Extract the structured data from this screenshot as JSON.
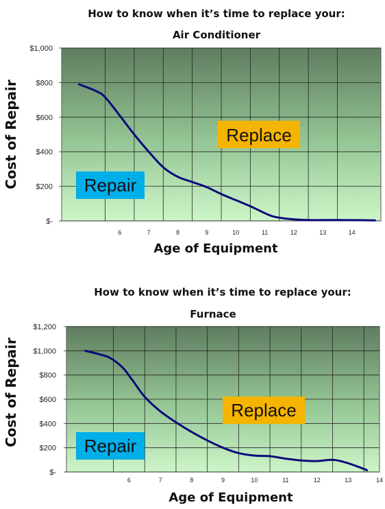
{
  "chart_data": [
    {
      "type": "line",
      "title": "How to know when it’s time to replace your:",
      "subtitle": "Air Conditioner",
      "xlabel": "Age of Equipment",
      "ylabel": "Cost of Repair",
      "ylim": [
        0,
        1000
      ],
      "xlim": [
        4.0,
        15.0
      ],
      "y_ticks": [
        {
          "value": 0,
          "label": "$-"
        },
        {
          "value": 200,
          "label": "$200"
        },
        {
          "value": 400,
          "label": "$400"
        },
        {
          "value": 600,
          "label": "$600"
        },
        {
          "value": 800,
          "label": "$800"
        },
        {
          "value": 1000,
          "label": "$1,000"
        }
      ],
      "x_ticks": [
        {
          "value": 6,
          "label": "6"
        },
        {
          "value": 7,
          "label": "7"
        },
        {
          "value": 8,
          "label": "8"
        },
        {
          "value": 9,
          "label": "9"
        },
        {
          "value": 10,
          "label": "10"
        },
        {
          "value": 11,
          "label": "11"
        },
        {
          "value": 12,
          "label": "12"
        },
        {
          "value": 13,
          "label": "13"
        },
        {
          "value": 14,
          "label": "14"
        }
      ],
      "grid": true,
      "series": [
        {
          "color": "#0b0b7a",
          "x": [
            4.6,
            5.2,
            5.5,
            6.0,
            6.5,
            7.0,
            7.5,
            8.0,
            8.5,
            9.0,
            9.5,
            10.0,
            10.5,
            11.0,
            11.3,
            11.8,
            12.5,
            13.5,
            14.8
          ],
          "y": [
            790,
            750,
            715,
            610,
            500,
            400,
            310,
            255,
            225,
            195,
            155,
            120,
            85,
            45,
            25,
            12,
            5,
            5,
            3
          ]
        }
      ],
      "annotations": [
        {
          "text": "Replace",
          "bg": "#f5b400"
        },
        {
          "text": "Repair",
          "bg": "#00aeea"
        }
      ]
    },
    {
      "type": "line",
      "title": "How to know when it’s time to replace your:",
      "subtitle": "Furnace",
      "xlabel": "Age of Equipment",
      "ylabel": "Cost of Repair",
      "ylim": [
        0,
        1200
      ],
      "xlim": [
        4.0,
        14.0
      ],
      "y_ticks": [
        {
          "value": 0,
          "label": "$-"
        },
        {
          "value": 200,
          "label": "$200"
        },
        {
          "value": 400,
          "label": "$400"
        },
        {
          "value": 600,
          "label": "$600"
        },
        {
          "value": 800,
          "label": "$800"
        },
        {
          "value": 1000,
          "label": "$1,000"
        },
        {
          "value": 1200,
          "label": "$1,200"
        }
      ],
      "x_ticks": [
        {
          "value": 6,
          "label": "6"
        },
        {
          "value": 7,
          "label": "7"
        },
        {
          "value": 8,
          "label": "8"
        },
        {
          "value": 9,
          "label": "9"
        },
        {
          "value": 10,
          "label": "10"
        },
        {
          "value": 11,
          "label": "11"
        },
        {
          "value": 12,
          "label": "12"
        },
        {
          "value": 13,
          "label": "13"
        },
        {
          "value": 14,
          "label": "14"
        }
      ],
      "grid": true,
      "series": [
        {
          "color": "#0b0b7a",
          "x": [
            4.6,
            5.0,
            5.4,
            5.8,
            6.1,
            6.5,
            7.0,
            7.5,
            8.0,
            8.5,
            9.0,
            9.5,
            10.0,
            10.5,
            11.0,
            11.5,
            12.0,
            12.5,
            12.9,
            13.4,
            13.6
          ],
          "y": [
            1000,
            975,
            940,
            860,
            760,
            620,
            500,
            410,
            330,
            260,
            200,
            155,
            135,
            130,
            110,
            95,
            90,
            100,
            80,
            35,
            15
          ]
        }
      ],
      "annotations": [
        {
          "text": "Replace",
          "bg": "#f5b400"
        },
        {
          "text": "Repair",
          "bg": "#00aeea"
        }
      ]
    }
  ]
}
